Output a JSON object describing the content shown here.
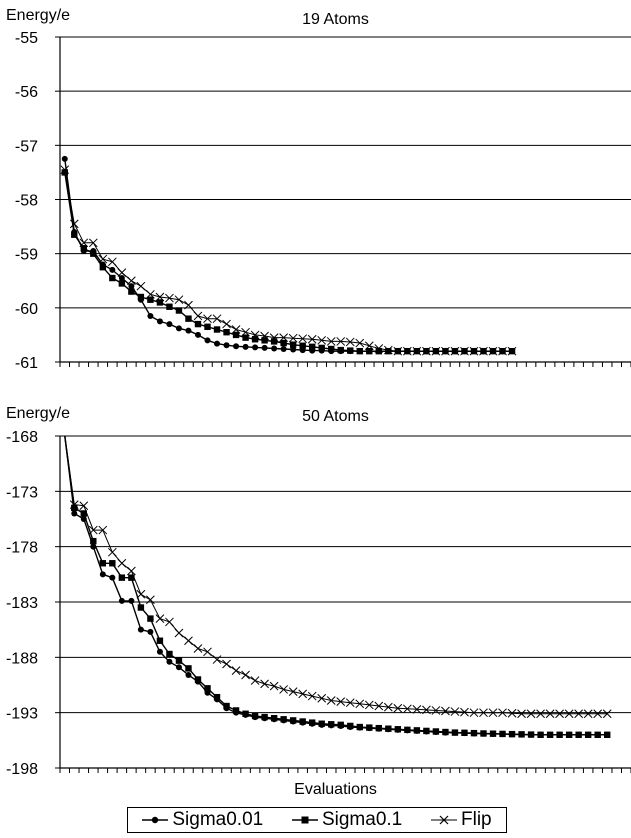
{
  "colors": {
    "line": "#000000",
    "grid": "#000000",
    "background": "#ffffff"
  },
  "legend": {
    "items": [
      {
        "label": "Sigma0.01",
        "marker": "circle"
      },
      {
        "label": "Sigma0.1",
        "marker": "square"
      },
      {
        "label": "Flip",
        "marker": "cross"
      }
    ]
  },
  "chart_data": [
    {
      "type": "line",
      "title": "19 Atoms",
      "ylabel": "Energy/e",
      "xlabel": "",
      "ylim": [
        -61,
        -55
      ],
      "yticks": [
        "-55",
        "-56",
        "-57",
        "-58",
        "-59",
        "-60",
        "-61"
      ],
      "grid": true,
      "x_count": 60,
      "series": [
        {
          "name": "Sigma0.01",
          "marker": "circle",
          "values": [
            -57.25,
            -58.6,
            -58.95,
            -58.95,
            -59.2,
            -59.3,
            -59.45,
            -59.6,
            -59.85,
            -60.15,
            -60.25,
            -60.3,
            -60.38,
            -60.42,
            -60.5,
            -60.6,
            -60.66,
            -60.69,
            -60.71,
            -60.72,
            -60.73,
            -60.74,
            -60.75,
            -60.76,
            -60.77,
            -60.78,
            -60.79,
            -60.79,
            -60.8,
            -60.8,
            -60.8,
            -60.8,
            -60.8,
            -60.8,
            -60.8,
            -60.8,
            -60.8,
            -60.8,
            -60.8,
            -60.8,
            -60.8,
            -60.8,
            -60.8,
            -60.8,
            -60.8,
            -60.8,
            -60.8,
            -60.8
          ]
        },
        {
          "name": "Sigma0.1",
          "marker": "square",
          "values": [
            -57.5,
            -58.65,
            -58.9,
            -59.0,
            -59.25,
            -59.45,
            -59.55,
            -59.7,
            -59.8,
            -59.85,
            -59.9,
            -59.98,
            -60.05,
            -60.2,
            -60.3,
            -60.35,
            -60.4,
            -60.45,
            -60.5,
            -60.55,
            -60.58,
            -60.6,
            -60.62,
            -60.65,
            -60.68,
            -60.7,
            -60.72,
            -60.74,
            -60.76,
            -60.78,
            -60.79,
            -60.8,
            -60.8,
            -60.8,
            -60.8,
            -60.8,
            -60.8,
            -60.8,
            -60.8,
            -60.8,
            -60.8,
            -60.8,
            -60.8,
            -60.8,
            -60.8,
            -60.8,
            -60.8,
            -60.8
          ]
        },
        {
          "name": "Flip",
          "marker": "cross",
          "values": [
            -57.45,
            -58.45,
            -58.8,
            -58.8,
            -59.1,
            -59.15,
            -59.35,
            -59.5,
            -59.6,
            -59.75,
            -59.8,
            -59.82,
            -59.85,
            -59.95,
            -60.15,
            -60.2,
            -60.2,
            -60.3,
            -60.4,
            -60.45,
            -60.5,
            -60.52,
            -60.55,
            -60.55,
            -60.56,
            -60.57,
            -60.58,
            -60.6,
            -60.62,
            -60.62,
            -60.63,
            -60.65,
            -60.7,
            -60.75,
            -60.78,
            -60.8,
            -60.8,
            -60.8,
            -60.8,
            -60.8,
            -60.8,
            -60.8,
            -60.8,
            -60.8,
            -60.8,
            -60.8,
            -60.8,
            -60.8
          ]
        }
      ]
    },
    {
      "type": "line",
      "title": "50 Atoms",
      "ylabel": "Energy/e",
      "xlabel": "Evaluations",
      "ylim": [
        -198,
        -168
      ],
      "yticks": [
        "-168",
        "-173",
        "-178",
        "-183",
        "-188",
        "-193",
        "-198"
      ],
      "grid": true,
      "x_count": 60,
      "series": [
        {
          "name": "Sigma0.01",
          "marker": "circle",
          "values": [
            -168,
            -175,
            -175.5,
            -178,
            -180.5,
            -180.8,
            -182.9,
            -182.9,
            -185.5,
            -185.7,
            -187.5,
            -188.4,
            -188.9,
            -189.6,
            -190.2,
            -191.2,
            -191.8,
            -192.6,
            -193.0,
            -193.2,
            -193.4,
            -193.5,
            -193.6,
            -193.7,
            -193.8,
            -193.9,
            -194.0,
            -194.1,
            -194.15,
            -194.2,
            -194.3,
            -194.35,
            -194.4,
            -194.45,
            -194.5,
            -194.55,
            -194.6,
            -194.65,
            -194.7,
            -194.75,
            -194.8,
            -194.82,
            -194.85,
            -194.88,
            -194.9,
            -194.92,
            -194.94,
            -194.96,
            -194.98,
            -195.0,
            -195.0,
            -195.0,
            -195.0,
            -195.0,
            -195.0,
            -195.0,
            -195.0,
            -195.0
          ]
        },
        {
          "name": "Sigma0.1",
          "marker": "square",
          "values": [
            -168,
            -174.5,
            -175,
            -177.5,
            -179.5,
            -179.5,
            -180.8,
            -180.8,
            -183.5,
            -184.5,
            -186.5,
            -187.7,
            -188.3,
            -189.0,
            -190.0,
            -190.8,
            -191.6,
            -192.4,
            -192.8,
            -193.1,
            -193.3,
            -193.4,
            -193.5,
            -193.6,
            -193.7,
            -193.8,
            -193.9,
            -194.0,
            -194.05,
            -194.1,
            -194.2,
            -194.3,
            -194.35,
            -194.4,
            -194.45,
            -194.5,
            -194.55,
            -194.6,
            -194.65,
            -194.7,
            -194.75,
            -194.8,
            -194.82,
            -194.85,
            -194.88,
            -194.9,
            -194.92,
            -194.94,
            -194.96,
            -194.98,
            -195.0,
            -195.0,
            -195.0,
            -195.0,
            -195.0,
            -195.0,
            -195.0,
            -195.0
          ]
        },
        {
          "name": "Flip",
          "marker": "cross",
          "values": [
            -168,
            -174.2,
            -174.3,
            -176.5,
            -176.5,
            -178.5,
            -179.5,
            -180.2,
            -182.3,
            -182.8,
            -184.5,
            -184.8,
            -185.8,
            -186.5,
            -187.2,
            -187.5,
            -188.2,
            -188.6,
            -189.2,
            -189.6,
            -190.1,
            -190.4,
            -190.6,
            -190.9,
            -191.1,
            -191.3,
            -191.5,
            -191.7,
            -191.9,
            -192.0,
            -192.1,
            -192.2,
            -192.3,
            -192.4,
            -192.5,
            -192.6,
            -192.65,
            -192.7,
            -192.75,
            -192.8,
            -192.85,
            -192.9,
            -192.95,
            -193.0,
            -193.0,
            -193.0,
            -193.0,
            -193.05,
            -193.1,
            -193.1,
            -193.1,
            -193.1,
            -193.1,
            -193.1,
            -193.1,
            -193.1,
            -193.1,
            -193.1
          ]
        }
      ]
    }
  ]
}
